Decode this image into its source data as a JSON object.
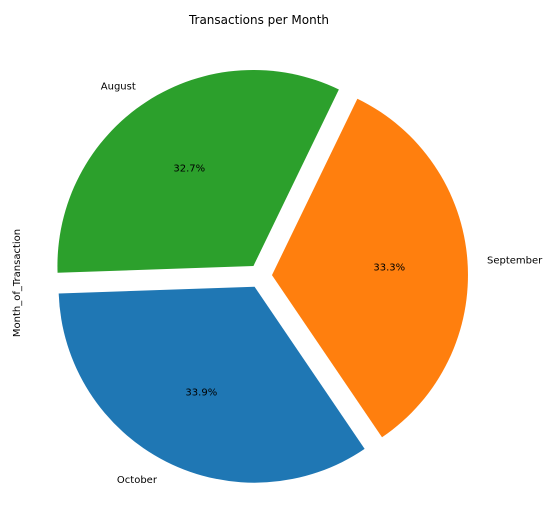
{
  "chart_data": {
    "type": "pie",
    "title": "Transactions per Month",
    "ylabel": "Month_of_Transaction",
    "slices": [
      {
        "label": "October",
        "percent": 33.9,
        "pct_label": "33.9%",
        "color": "#1f77b4",
        "explode": true
      },
      {
        "label": "September",
        "percent": 33.3,
        "pct_label": "33.3%",
        "color": "#ff7f0e",
        "explode": true
      },
      {
        "label": "August",
        "percent": 32.7,
        "pct_label": "32.7%",
        "color": "#2ca02c",
        "explode": true
      }
    ],
    "start_angle_deg": 182,
    "direction": "counterclockwise",
    "legend": "none"
  }
}
